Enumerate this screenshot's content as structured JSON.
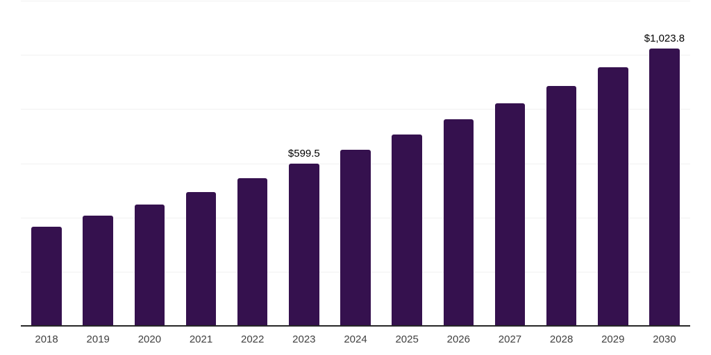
{
  "chart_data": {
    "type": "bar",
    "title": "",
    "xlabel": "",
    "ylabel": "",
    "categories": [
      "2018",
      "2019",
      "2020",
      "2021",
      "2022",
      "2023",
      "2024",
      "2025",
      "2026",
      "2027",
      "2028",
      "2029",
      "2030"
    ],
    "values": [
      367,
      406,
      449,
      494,
      546,
      599.5,
      651,
      706,
      763,
      821,
      885,
      955,
      1023.8
    ],
    "data_labels": {
      "2023": "$599.5",
      "2030": "$1,023.8"
    },
    "ylim": [
      0,
      1200
    ],
    "gridline_step": 200,
    "grid": true,
    "legend": false,
    "colors": {
      "bar": "#35114E",
      "axis_line": "#262626",
      "gridline": "#f1f1f1",
      "tick_label": "#404040",
      "data_label": "#000000",
      "background": "#ffffff"
    }
  }
}
